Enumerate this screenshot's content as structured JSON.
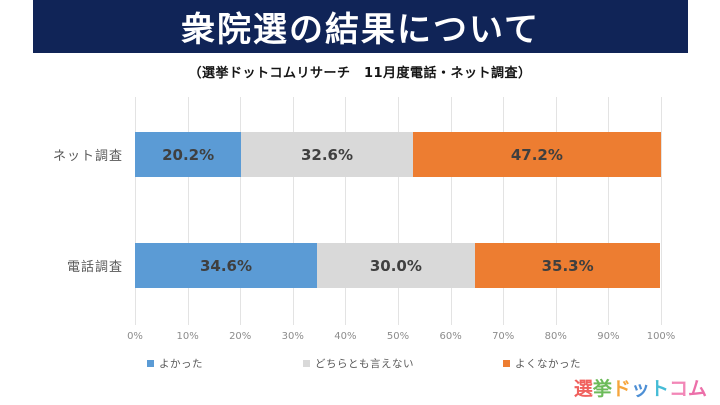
{
  "chart_data": {
    "type": "bar",
    "orientation": "horizontal",
    "stacked": true,
    "normalized_100": true,
    "title": "衆院選の結果について",
    "subtitle": "（選挙ドットコムリサーチ　11月度電話・ネット調査）",
    "categories": [
      "ネット調査",
      "電話調査"
    ],
    "series": [
      {
        "name": "よかった",
        "color": "#5B9BD5",
        "values": [
          20.2,
          34.6
        ],
        "labels": [
          "20.2%",
          "34.6%"
        ]
      },
      {
        "name": "どちらとも言えない",
        "color": "#D9D9D9",
        "values": [
          32.6,
          30.0
        ],
        "labels": [
          "32.6%",
          "30.0%"
        ]
      },
      {
        "name": "よくなかった",
        "color": "#ED7D31",
        "values": [
          47.2,
          35.3
        ],
        "labels": [
          "47.2%",
          "35.3%"
        ]
      }
    ],
    "xlim": [
      0,
      100
    ],
    "xticks": [
      "0%",
      "10%",
      "20%",
      "30%",
      "40%",
      "50%",
      "60%",
      "70%",
      "80%",
      "90%",
      "100%"
    ],
    "grid": "vertical",
    "legend_position": "bottom"
  },
  "colors": {
    "banner_background": "#102457",
    "banner_text": "#FFFFFF",
    "value_label_text": "#3F3F3F",
    "axis_text": "#8C8C8C",
    "category_text": "#595959"
  },
  "logo": {
    "text": "選挙ドットコム",
    "chars": [
      {
        "ch": "選",
        "color": "#F0615E"
      },
      {
        "ch": "挙",
        "color": "#6CBB5A"
      },
      {
        "ch": "ド",
        "color": "#F6A53C"
      },
      {
        "ch": "ッ",
        "color": "#4D8FD5"
      },
      {
        "ch": "ト",
        "color": "#45BCD6"
      },
      {
        "ch": "コ",
        "color": "#F287B7"
      },
      {
        "ch": "ム",
        "color": "#EC6FA9"
      }
    ]
  }
}
